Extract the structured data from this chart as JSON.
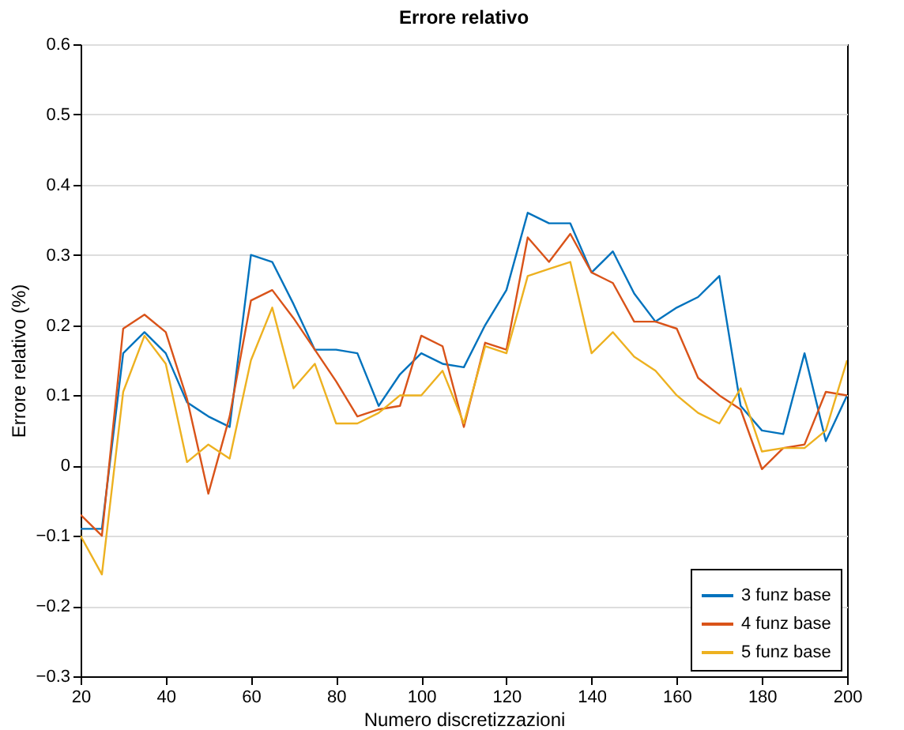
{
  "chart_data": {
    "type": "line",
    "title": "Errore relativo",
    "xlabel": "Numero discretizzazioni",
    "ylabel": "Errore relativo (%)",
    "x": [
      20,
      25,
      30,
      35,
      40,
      45,
      50,
      55,
      60,
      65,
      70,
      75,
      80,
      85,
      90,
      95,
      100,
      105,
      110,
      115,
      120,
      125,
      130,
      135,
      140,
      145,
      150,
      155,
      160,
      165,
      170,
      175,
      180,
      185,
      190,
      195,
      200
    ],
    "series": [
      {
        "name": "3 funz base",
        "color": "#0072bd",
        "values": [
          -0.09,
          -0.09,
          0.16,
          0.19,
          0.16,
          0.09,
          0.07,
          0.055,
          0.3,
          0.29,
          0.23,
          0.165,
          0.165,
          0.16,
          0.085,
          0.13,
          0.16,
          0.145,
          0.14,
          0.2,
          0.25,
          0.36,
          0.345,
          0.345,
          0.275,
          0.305,
          0.245,
          0.205,
          0.225,
          0.24,
          0.27,
          0.085,
          0.05,
          0.045,
          0.16,
          0.035,
          0.1
        ]
      },
      {
        "name": "4 funz base",
        "color": "#d95319",
        "values": [
          -0.07,
          -0.1,
          0.195,
          0.215,
          0.19,
          0.095,
          -0.04,
          0.07,
          0.235,
          0.25,
          0.21,
          0.165,
          0.12,
          0.07,
          0.08,
          0.085,
          0.185,
          0.17,
          0.055,
          0.175,
          0.165,
          0.325,
          0.29,
          0.33,
          0.275,
          0.26,
          0.205,
          0.205,
          0.195,
          0.125,
          0.1,
          0.08,
          -0.005,
          0.025,
          0.03,
          0.105,
          0.1
        ]
      },
      {
        "name": "5 funz base",
        "color": "#edb120",
        "values": [
          -0.1,
          -0.155,
          0.105,
          0.185,
          0.145,
          0.005,
          0.03,
          0.01,
          0.15,
          0.225,
          0.11,
          0.145,
          0.06,
          0.06,
          0.075,
          0.1,
          0.1,
          0.135,
          0.06,
          0.17,
          0.16,
          0.27,
          0.28,
          0.29,
          0.16,
          0.19,
          0.155,
          0.135,
          0.1,
          0.075,
          0.06,
          0.11,
          0.02,
          0.025,
          0.025,
          0.05,
          0.15
        ]
      }
    ],
    "xlim": [
      20,
      200
    ],
    "xticks": [
      20,
      40,
      60,
      80,
      100,
      120,
      140,
      160,
      180,
      200
    ],
    "ylim": [
      -0.3,
      0.6
    ],
    "yticks": [
      -0.3,
      -0.2,
      -0.1,
      0,
      0.1,
      0.2,
      0.3,
      0.4,
      0.5,
      0.6
    ],
    "grid": "y",
    "legend": "bottom right",
    "line_style": "solid",
    "marker": "none"
  }
}
